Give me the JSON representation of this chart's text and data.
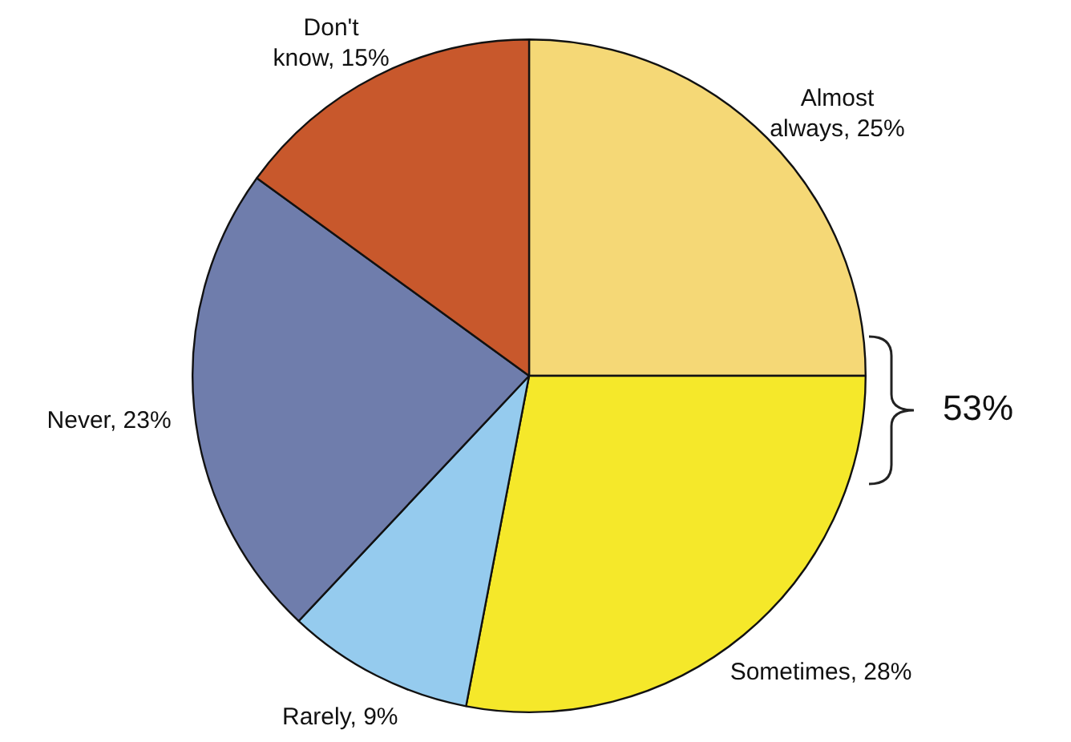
{
  "chart_data": {
    "type": "pie",
    "categories": [
      "Almost always",
      "Sometimes",
      "Rarely",
      "Never",
      "Don't know"
    ],
    "values": [
      25,
      28,
      9,
      23,
      15
    ],
    "value_labels": [
      "25%",
      "28%",
      "9%",
      "23%",
      "15%"
    ],
    "colors": [
      "#f5d876",
      "#f5e82a",
      "#95cbee",
      "#6f7dac",
      "#c8582c"
    ],
    "legend": false,
    "annotations": [
      "53%"
    ]
  }
}
